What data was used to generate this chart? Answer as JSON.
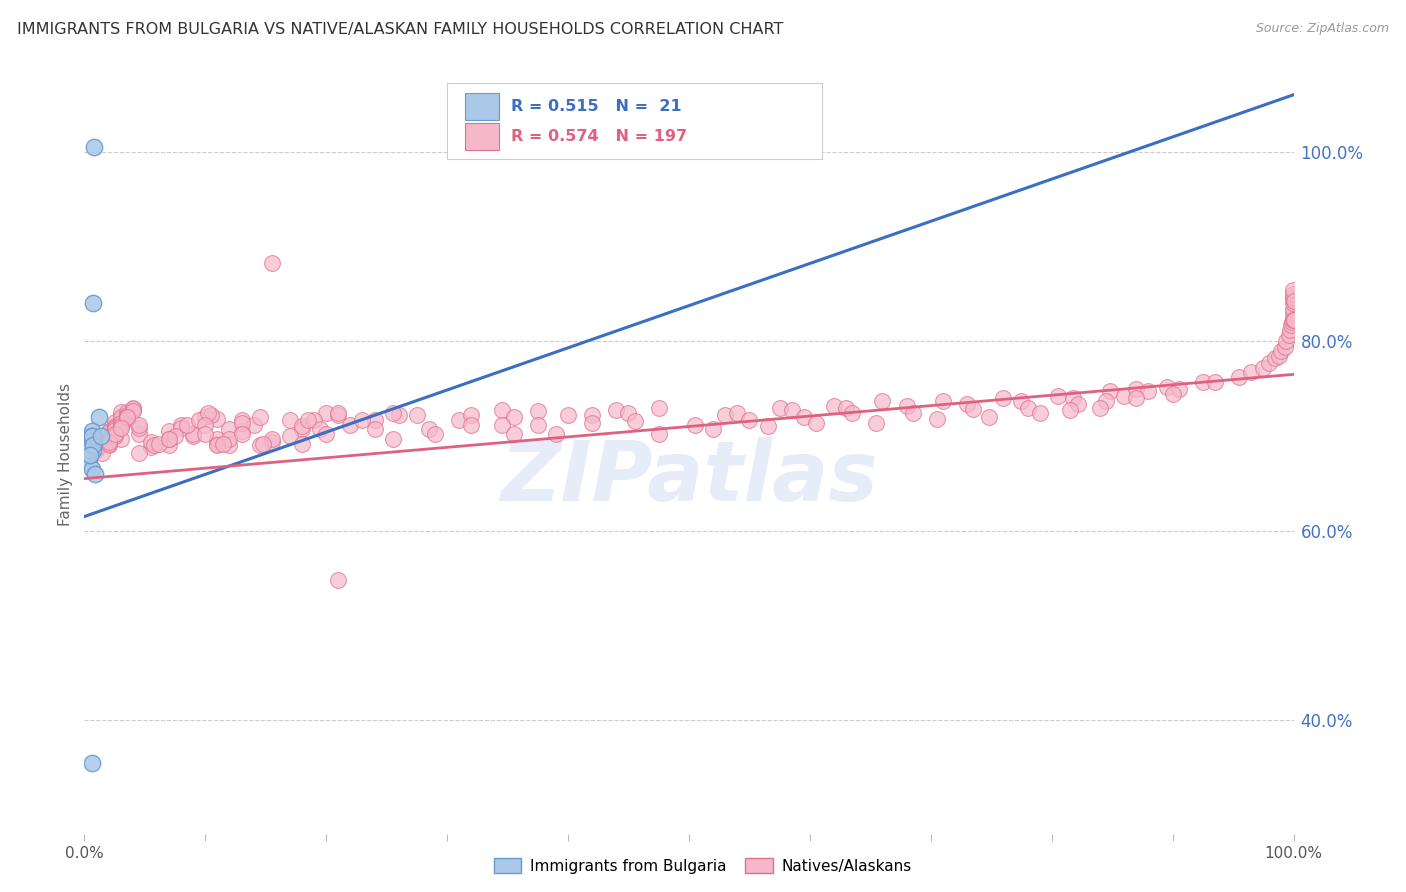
{
  "title": "IMMIGRANTS FROM BULGARIA VS NATIVE/ALASKAN FAMILY HOUSEHOLDS CORRELATION CHART",
  "source": "Source: ZipAtlas.com",
  "ylabel_left": "Family Households",
  "legend_label1": "Immigrants from Bulgaria",
  "legend_label2": "Natives/Alaskans",
  "r1": 0.515,
  "n1": 21,
  "r2": 0.574,
  "n2": 197,
  "watermark": "ZIPatlas",
  "bg_color": "#ffffff",
  "scatter1_color": "#aac8e8",
  "scatter1_edge": "#6699cc",
  "scatter2_color": "#f5b8cb",
  "scatter2_edge": "#e0708a",
  "line1_color": "#3a6fc4",
  "line2_color": "#e06080",
  "title_color": "#333333",
  "right_label_color": "#4472c4",
  "source_color": "#999999",
  "xlim": [
    0.0,
    1.0
  ],
  "ylim": [
    0.28,
    1.08
  ],
  "blue_line_x0": 0.0,
  "blue_line_y0": 0.615,
  "blue_line_x1": 1.0,
  "blue_line_y1": 1.06,
  "pink_line_x0": 0.0,
  "pink_line_y0": 0.655,
  "pink_line_x1": 1.0,
  "pink_line_y1": 0.765,
  "scatter1_x": [
    0.008,
    0.012,
    0.005,
    0.007,
    0.006,
    0.004,
    0.007,
    0.005,
    0.006,
    0.004,
    0.006,
    0.008,
    0.007,
    0.005,
    0.006,
    0.006,
    0.007,
    0.005,
    0.006,
    0.014,
    0.009
  ],
  "scatter1_y": [
    0.695,
    0.72,
    0.7,
    0.685,
    0.705,
    0.69,
    0.695,
    0.68,
    0.7,
    0.672,
    0.695,
    1.005,
    0.84,
    0.685,
    0.7,
    0.665,
    0.69,
    0.68,
    0.355,
    0.7,
    0.66
  ],
  "scatter2_x": [
    0.01,
    0.02,
    0.015,
    0.025,
    0.03,
    0.02,
    0.01,
    0.035,
    0.04,
    0.025,
    0.015,
    0.03,
    0.02,
    0.01,
    0.025,
    0.015,
    0.03,
    0.035,
    0.025,
    0.02,
    0.04,
    0.03,
    0.015,
    0.02,
    0.035,
    0.025,
    0.045,
    0.03,
    0.02,
    0.025,
    0.015,
    0.035,
    0.025,
    0.03,
    0.02,
    0.04,
    0.025,
    0.035,
    0.045,
    0.03,
    0.02,
    0.025,
    0.035,
    0.04,
    0.045,
    0.03,
    0.02,
    0.025,
    0.035,
    0.03,
    0.09,
    0.07,
    0.055,
    0.08,
    0.11,
    0.09,
    0.07,
    0.055,
    0.045,
    0.08,
    0.1,
    0.07,
    0.058,
    0.085,
    0.105,
    0.075,
    0.062,
    0.095,
    0.102,
    0.07,
    0.13,
    0.11,
    0.1,
    0.12,
    0.155,
    0.13,
    0.11,
    0.1,
    0.12,
    0.14,
    0.12,
    0.11,
    0.13,
    0.145,
    0.115,
    0.18,
    0.155,
    0.13,
    0.17,
    0.2,
    0.18,
    0.155,
    0.145,
    0.19,
    0.21,
    0.195,
    0.17,
    0.148,
    0.185,
    0.21,
    0.22,
    0.2,
    0.18,
    0.24,
    0.26,
    0.24,
    0.21,
    0.23,
    0.255,
    0.275,
    0.31,
    0.285,
    0.255,
    0.32,
    0.345,
    0.32,
    0.29,
    0.355,
    0.375,
    0.345,
    0.4,
    0.375,
    0.355,
    0.42,
    0.44,
    0.42,
    0.39,
    0.45,
    0.475,
    0.455,
    0.53,
    0.505,
    0.475,
    0.54,
    0.575,
    0.55,
    0.52,
    0.585,
    0.62,
    0.595,
    0.565,
    0.63,
    0.66,
    0.635,
    0.605,
    0.68,
    0.71,
    0.685,
    0.655,
    0.73,
    0.76,
    0.735,
    0.705,
    0.775,
    0.805,
    0.78,
    0.748,
    0.818,
    0.848,
    0.822,
    0.79,
    0.86,
    0.87,
    0.845,
    0.815,
    0.88,
    0.895,
    0.87,
    0.84,
    0.905,
    0.925,
    0.9,
    0.935,
    0.955,
    0.965,
    0.975,
    0.98,
    0.985,
    0.988,
    0.99,
    0.993,
    0.994,
    0.996,
    0.997,
    0.998,
    0.999,
    0.9992,
    0.9995,
    0.9997,
    0.9998,
    0.9999,
    0.99992,
    0.99995,
    0.99997,
    0.99998,
    0.99999,
    0.999992
  ],
  "scatter2_y": [
    0.685,
    0.705,
    0.695,
    0.715,
    0.725,
    0.702,
    0.688,
    0.718,
    0.728,
    0.708,
    0.698,
    0.718,
    0.7,
    0.685,
    0.71,
    0.695,
    0.72,
    0.725,
    0.705,
    0.698,
    0.728,
    0.714,
    0.69,
    0.704,
    0.722,
    0.708,
    0.702,
    0.697,
    0.69,
    0.708,
    0.682,
    0.718,
    0.702,
    0.712,
    0.696,
    0.73,
    0.706,
    0.72,
    0.708,
    0.714,
    0.692,
    0.7,
    0.718,
    0.726,
    0.712,
    0.71,
    0.694,
    0.702,
    0.72,
    0.708,
    0.7,
    0.705,
    0.688,
    0.712,
    0.718,
    0.702,
    0.69,
    0.694,
    0.682,
    0.708,
    0.72,
    0.697,
    0.69,
    0.712,
    0.722,
    0.7,
    0.692,
    0.717,
    0.724,
    0.697,
    0.705,
    0.692,
    0.712,
    0.69,
    0.882,
    0.717,
    0.697,
    0.702,
    0.707,
    0.712,
    0.697,
    0.69,
    0.714,
    0.72,
    0.692,
    0.707,
    0.694,
    0.702,
    0.717,
    0.724,
    0.71,
    0.697,
    0.69,
    0.717,
    0.722,
    0.707,
    0.7,
    0.692,
    0.717,
    0.724,
    0.712,
    0.702,
    0.692,
    0.717,
    0.722,
    0.707,
    0.548,
    0.717,
    0.724,
    0.722,
    0.717,
    0.707,
    0.697,
    0.722,
    0.727,
    0.712,
    0.702,
    0.72,
    0.726,
    0.712,
    0.722,
    0.712,
    0.702,
    0.722,
    0.727,
    0.714,
    0.702,
    0.724,
    0.73,
    0.716,
    0.722,
    0.712,
    0.702,
    0.724,
    0.73,
    0.717,
    0.707,
    0.727,
    0.732,
    0.72,
    0.71,
    0.73,
    0.737,
    0.724,
    0.714,
    0.732,
    0.737,
    0.724,
    0.714,
    0.734,
    0.74,
    0.728,
    0.718,
    0.737,
    0.742,
    0.73,
    0.72,
    0.74,
    0.747,
    0.734,
    0.724,
    0.742,
    0.75,
    0.737,
    0.727,
    0.747,
    0.752,
    0.74,
    0.73,
    0.75,
    0.757,
    0.744,
    0.757,
    0.762,
    0.767,
    0.772,
    0.777,
    0.782,
    0.784,
    0.79,
    0.794,
    0.8,
    0.807,
    0.812,
    0.817,
    0.82,
    0.824,
    0.83,
    0.834,
    0.84,
    0.844,
    0.847,
    0.85,
    0.854,
    0.822,
    0.842,
    0.822
  ]
}
